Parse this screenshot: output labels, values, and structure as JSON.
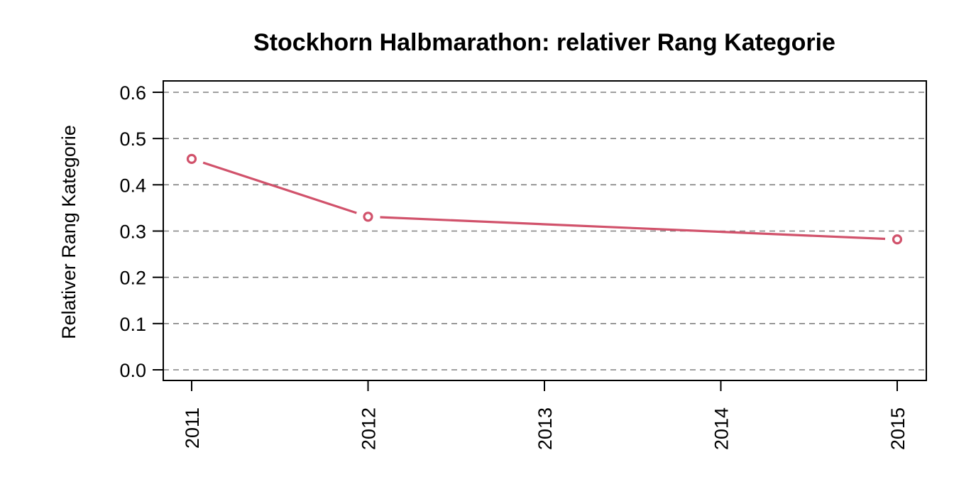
{
  "chart_data": {
    "type": "line",
    "title": "Stockhorn Halbmarathon: relativer Rang Kategorie",
    "xlabel": "",
    "ylabel": "Relativer Rang Kategorie",
    "x_ticks": [
      "2011",
      "2012",
      "2013",
      "2014",
      "2015"
    ],
    "y_ticks": [
      "0.0",
      "0.1",
      "0.2",
      "0.3",
      "0.4",
      "0.5",
      "0.6"
    ],
    "ylim": [
      0,
      0.6
    ],
    "xlim": [
      2011,
      2015
    ],
    "grid": "horizontal-dashed",
    "series": [
      {
        "color": "#d1526b",
        "points": [
          {
            "x": 2011,
            "y": 0.456
          },
          {
            "x": 2012,
            "y": 0.331
          },
          {
            "x": 2015,
            "y": 0.282
          }
        ]
      }
    ]
  }
}
